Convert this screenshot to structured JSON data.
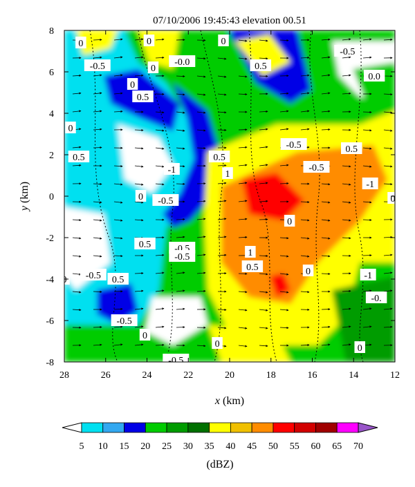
{
  "chart_data": {
    "type": "heatmap",
    "title": "07/10/2006 19:45:43 elevation 00.51",
    "xlabel_var": "x",
    "xlabel_unit": "(km)",
    "ylabel_var": "y",
    "ylabel_unit": "(km)",
    "xlim": [
      28,
      12
    ],
    "ylim": [
      -8,
      8
    ],
    "x_ticks": [
      28,
      26,
      24,
      22,
      20,
      18,
      16,
      14,
      12
    ],
    "y_ticks": [
      8,
      6,
      4,
      2,
      0,
      -2,
      -4,
      -6,
      -8
    ],
    "colorbar": {
      "unit": "(dBZ)",
      "ticks": [
        5,
        10,
        15,
        20,
        25,
        30,
        35,
        40,
        45,
        50,
        55,
        60,
        65,
        70
      ],
      "colors": [
        "#00e0f0",
        "#32a8f0",
        "#0000e6",
        "#00cc00",
        "#009c00",
        "#007000",
        "#ffff00",
        "#f0c000",
        "#ff8c00",
        "#ff0000",
        "#d20000",
        "#a00000",
        "#ff00ff",
        "#9955c9"
      ]
    },
    "contour_labels": [
      {
        "text": "0",
        "x": 27.2,
        "y": 7.4
      },
      {
        "text": "-0.5",
        "x": 26.4,
        "y": 6.3
      },
      {
        "text": "0",
        "x": 23.9,
        "y": 7.5
      },
      {
        "text": "0",
        "x": 23.7,
        "y": 6.2
      },
      {
        "text": "-0.0",
        "x": 22.3,
        "y": 6.5
      },
      {
        "text": "0",
        "x": 20.3,
        "y": 7.5
      },
      {
        "text": "0.5",
        "x": 18.5,
        "y": 6.3
      },
      {
        "text": "-0.5",
        "x": 14.3,
        "y": 7.0
      },
      {
        "text": "0.0",
        "x": 13.0,
        "y": 5.8
      },
      {
        "text": "0",
        "x": 24.7,
        "y": 5.4
      },
      {
        "text": "0.5",
        "x": 24.2,
        "y": 4.8
      },
      {
        "text": "0",
        "x": 27.7,
        "y": 3.3
      },
      {
        "text": "0.5",
        "x": 27.3,
        "y": 1.9
      },
      {
        "text": "-1",
        "x": 22.8,
        "y": 1.3
      },
      {
        "text": "0.5",
        "x": 20.5,
        "y": 1.9
      },
      {
        "text": "1",
        "x": 20.1,
        "y": 1.1
      },
      {
        "text": "-0.5",
        "x": 16.9,
        "y": 2.5
      },
      {
        "text": "0.5",
        "x": 14.1,
        "y": 2.3
      },
      {
        "text": "-0.5",
        "x": 15.8,
        "y": 1.4
      },
      {
        "text": "-1",
        "x": 13.2,
        "y": 0.6
      },
      {
        "text": "0",
        "x": 24.3,
        "y": 0.0
      },
      {
        "text": "-0.5",
        "x": 23.1,
        "y": -0.2
      },
      {
        "text": "0",
        "x": 17.1,
        "y": -1.2
      },
      {
        "text": "0",
        "x": 12.1,
        "y": -0.1
      },
      {
        "text": "0.5",
        "x": 24.1,
        "y": -2.3
      },
      {
        "text": "-0.5",
        "x": 22.3,
        "y": -2.5
      },
      {
        "text": "-0.5",
        "x": 22.3,
        "y": -2.9
      },
      {
        "text": "1",
        "x": 19.0,
        "y": -2.7
      },
      {
        "text": "0.5",
        "x": 18.9,
        "y": -3.4
      },
      {
        "text": "0",
        "x": 16.2,
        "y": -3.6
      },
      {
        "text": "0",
        "x": 28.0,
        "y": -4.0
      },
      {
        "text": "-0.5",
        "x": 26.6,
        "y": -3.8
      },
      {
        "text": "0.5",
        "x": 25.4,
        "y": -4.0
      },
      {
        "text": "-1",
        "x": 13.3,
        "y": -3.8
      },
      {
        "text": "-0.",
        "x": 12.9,
        "y": -4.9
      },
      {
        "text": "-0.5",
        "x": 25.1,
        "y": -6.0
      },
      {
        "text": "0",
        "x": 24.1,
        "y": -6.7
      },
      {
        "text": "0",
        "x": 20.6,
        "y": -7.1
      },
      {
        "text": "0",
        "x": 13.7,
        "y": -7.3
      },
      {
        "text": "-0.5",
        "x": 22.6,
        "y": -7.9
      }
    ]
  }
}
